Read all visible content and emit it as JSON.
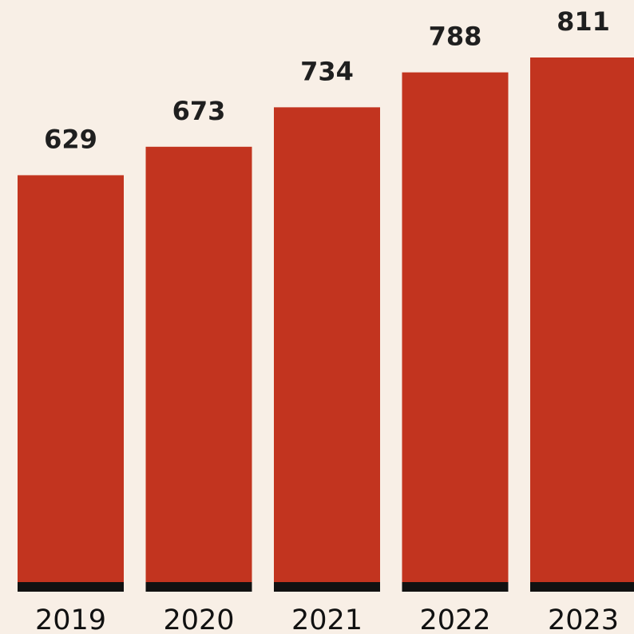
{
  "chart_data": {
    "type": "bar",
    "title": "",
    "xlabel": "",
    "ylabel": "",
    "categories": [
      "2019",
      "2020",
      "2021",
      "2022",
      "2023"
    ],
    "values": [
      629,
      673,
      734,
      788,
      811
    ],
    "data_labels": [
      "629",
      "673",
      "734",
      "788",
      "811"
    ],
    "ylim": [
      0,
      811
    ],
    "grid": false,
    "legend": "none",
    "colors": {
      "background": "#f8efe6",
      "bar": "#c2341f",
      "baseline": "#111111"
    }
  }
}
